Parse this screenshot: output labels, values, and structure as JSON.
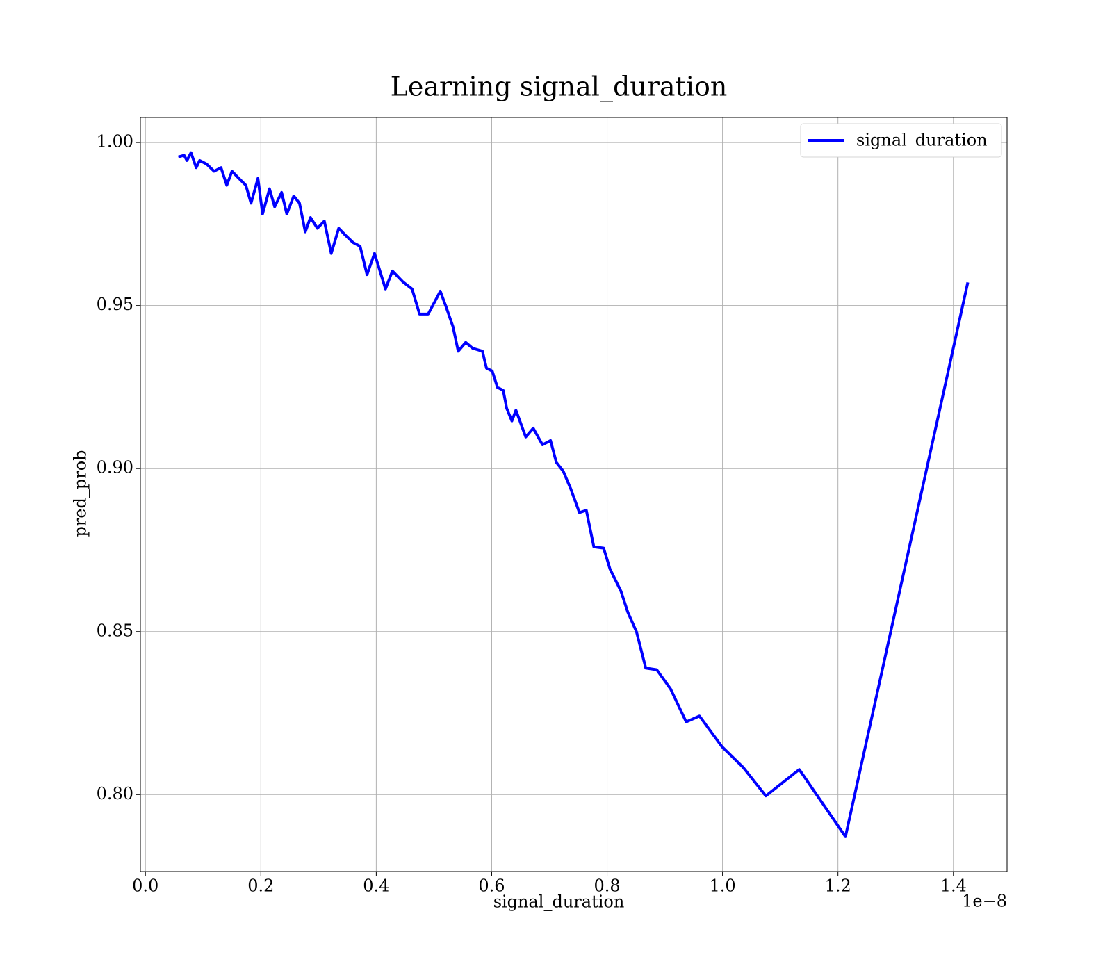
{
  "chart_data": {
    "type": "line",
    "title": "Learning signal_duration",
    "x_label": "signal_duration",
    "y_label": "pred_prob",
    "x_offset_label": "1e−8",
    "x": [
      0.057,
      0.067,
      0.072,
      0.079,
      0.088,
      0.094,
      0.106,
      0.119,
      0.131,
      0.141,
      0.15,
      0.162,
      0.174,
      0.183,
      0.195,
      0.203,
      0.215,
      0.224,
      0.236,
      0.245,
      0.257,
      0.267,
      0.277,
      0.286,
      0.298,
      0.31,
      0.322,
      0.335,
      0.347,
      0.36,
      0.372,
      0.384,
      0.397,
      0.416,
      0.428,
      0.446,
      0.462,
      0.475,
      0.49,
      0.502,
      0.511,
      0.521,
      0.533,
      0.542,
      0.555,
      0.567,
      0.584,
      0.591,
      0.601,
      0.61,
      0.62,
      0.626,
      0.635,
      0.642,
      0.659,
      0.672,
      0.688,
      0.702,
      0.712,
      0.724,
      0.737,
      0.752,
      0.764,
      0.777,
      0.794,
      0.805,
      0.824,
      0.836,
      0.851,
      0.867,
      0.886,
      0.91,
      0.937,
      0.96,
      0.999,
      1.036,
      1.075,
      1.133,
      1.213,
      1.425
    ],
    "series": [
      {
        "name": "signal_duration",
        "color": "#0000ff",
        "values": [
          0.9956,
          0.9961,
          0.9945,
          0.9969,
          0.9923,
          0.9945,
          0.9934,
          0.9912,
          0.9923,
          0.9869,
          0.9912,
          0.989,
          0.9869,
          0.9814,
          0.989,
          0.9781,
          0.9858,
          0.9803,
          0.9847,
          0.9781,
          0.9836,
          0.9814,
          0.9726,
          0.977,
          0.9737,
          0.9759,
          0.966,
          0.9737,
          0.9715,
          0.9693,
          0.9682,
          0.9595,
          0.966,
          0.9551,
          0.9606,
          0.9573,
          0.9551,
          0.9474,
          0.9474,
          0.9514,
          0.9544,
          0.9496,
          0.9435,
          0.936,
          0.9387,
          0.9369,
          0.936,
          0.9308,
          0.9299,
          0.9249,
          0.924,
          0.9185,
          0.9146,
          0.9179,
          0.9097,
          0.9124,
          0.9073,
          0.9086,
          0.9019,
          0.8992,
          0.8938,
          0.8865,
          0.8872,
          0.876,
          0.8756,
          0.8692,
          0.8624,
          0.8559,
          0.8499,
          0.8388,
          0.8383,
          0.8324,
          0.8223,
          0.8241,
          0.8147,
          0.8083,
          0.7996,
          0.8077,
          0.7871,
          0.9571
        ]
      }
    ],
    "xlim": [
      -0.0087,
      1.493
    ],
    "ylim": [
      0.7764,
      1.0077
    ],
    "xticks": [
      {
        "value": 0,
        "label": "0.0"
      },
      0.2,
      0.4,
      0.6,
      0.8,
      {
        "value": 1,
        "label": "1.0"
      },
      1.2,
      1.4
    ],
    "yticks": [
      {
        "value": 0.8,
        "label": "0.80"
      },
      0.85,
      {
        "value": 0.9,
        "label": "0.90"
      },
      0.95,
      {
        "value": 1,
        "label": "1.00"
      }
    ],
    "grid": true,
    "legend": "upper right"
  }
}
